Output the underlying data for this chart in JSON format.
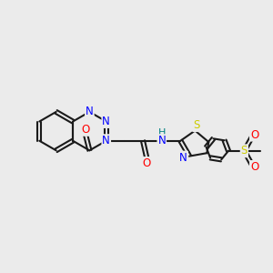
{
  "bg_color": "#ebebeb",
  "bond_color": "#1a1a1a",
  "bond_width": 1.5,
  "atom_colors": {
    "N": "#0000ff",
    "O": "#ff0000",
    "S": "#cccc00",
    "H": "#008080",
    "C": "#1a1a1a"
  },
  "font_size": 8.5,
  "figsize": [
    3.0,
    3.0
  ],
  "dpi": 100,
  "xlim": [
    0,
    10
  ],
  "ylim": [
    0,
    10
  ]
}
